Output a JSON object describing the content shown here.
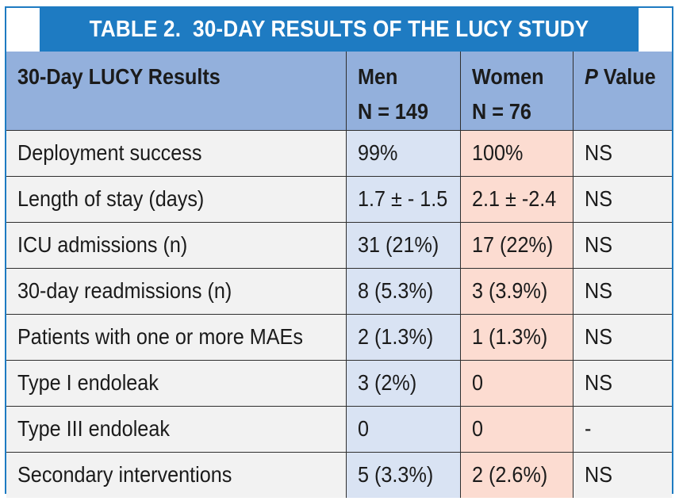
{
  "title": "TABLE 2.  30-DAY RESULTS OF THE LUCY STUDY",
  "header": {
    "col1": "30-Day LUCY Results",
    "men_label": "Men",
    "men_n": "N = 149",
    "women_label": "Women",
    "women_n": "N = 76",
    "pvalue_p": "P",
    "pvalue_rest": " Value"
  },
  "rows": [
    {
      "label": "Deployment success",
      "men": "99%",
      "women": "100%",
      "p": "NS"
    },
    {
      "label": "Length of stay (days)",
      "men": "1.7 ± - 1.5",
      "women": "2.1 ± -2.4",
      "p": "NS"
    },
    {
      "label": "ICU admissions (n)",
      "men": "31 (21%)",
      "women": "17 (22%)",
      "p": "NS"
    },
    {
      "label": "30-day readmissions (n)",
      "men": "8 (5.3%)",
      "women": "3 (3.9%)",
      "p": "NS"
    },
    {
      "label": "Patients with one or more MAEs",
      "men": "2 (1.3%)",
      "women": "1 (1.3%)",
      "p": "NS"
    },
    {
      "label": "Type I endoleak",
      "men": "3 (2%)",
      "women": "0",
      "p": "NS"
    },
    {
      "label": "Type III endoleak",
      "men": "0",
      "women": "0",
      "p": "-"
    },
    {
      "label": "Secondary interventions",
      "men": "5 (3.3%)",
      "women": "2 (2.6%)",
      "p": "NS"
    }
  ],
  "colors": {
    "title_bg": "#1e7bc2",
    "header_bg": "#93b0dc",
    "men_bg": "#d9e3f3",
    "women_bg": "#fcdcd1",
    "label_bg": "#f2f2f2"
  }
}
